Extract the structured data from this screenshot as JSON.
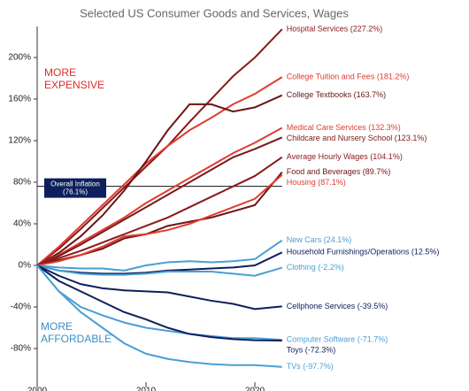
{
  "chart_data": {
    "type": "line",
    "subtitle": "Selected US Consumer Goods and Services, Wages",
    "x": [
      2000,
      2002,
      2004,
      2006,
      2008,
      2010,
      2012,
      2014,
      2016,
      2018,
      2020,
      2022.5
    ],
    "xlim": [
      2000,
      2023.5
    ],
    "xticks": [
      2000,
      2010,
      2020
    ],
    "ylim": [
      -115,
      230
    ],
    "yticks": [
      {
        "value": -80,
        "label": "-80%"
      },
      {
        "value": -40,
        "label": "-40%"
      },
      {
        "value": 0,
        "label": "0%"
      },
      {
        "value": 40,
        "label": "40%"
      },
      {
        "value": 80,
        "label": "80%"
      },
      {
        "value": 120,
        "label": "120%"
      },
      {
        "value": 160,
        "label": "160%"
      },
      {
        "value": 200,
        "label": "200%"
      }
    ],
    "series": [
      {
        "name": "Hospital Services (227.2%)",
        "color": "#8b1a1a",
        "values": [
          0,
          16,
          35,
          55,
          75,
          95,
          115,
          138,
          160,
          182,
          200,
          227.2
        ]
      },
      {
        "name": "College Tuition and Fees (181.2%)",
        "color": "#e03c31",
        "values": [
          0,
          18,
          38,
          58,
          78,
          98,
          115,
          130,
          142,
          155,
          165,
          181.2
        ]
      },
      {
        "name": "College Textbooks (163.7%)",
        "color": "#6b1515",
        "values": [
          0,
          12,
          28,
          48,
          72,
          100,
          130,
          155,
          155,
          148,
          152,
          163.7
        ]
      },
      {
        "name": "Medical Care Services (132.3%)",
        "color": "#e03c31",
        "values": [
          0,
          10,
          22,
          34,
          46,
          60,
          72,
          84,
          96,
          108,
          118,
          132.3
        ]
      },
      {
        "name": "Childcare and Nursery School (123.1%)",
        "color": "#7a1a1a",
        "values": [
          0,
          9,
          20,
          32,
          44,
          56,
          68,
          80,
          92,
          104,
          112,
          123.1
        ]
      },
      {
        "name": "Average Hourly Wages (104.1%)",
        "color": "#8b1a1a",
        "values": [
          0,
          7,
          14,
          22,
          30,
          38,
          46,
          56,
          66,
          76,
          86,
          104.1
        ]
      },
      {
        "name": "Food and Beverages (89.7%)",
        "color": "#6b1515",
        "values": [
          0,
          5,
          10,
          16,
          26,
          30,
          38,
          42,
          46,
          52,
          58,
          89.7
        ]
      },
      {
        "name": "Housing (87.1%)",
        "color": "#e03c31",
        "values": [
          0,
          4,
          10,
          18,
          28,
          30,
          34,
          40,
          48,
          56,
          64,
          87.1
        ]
      },
      {
        "name": "New Cars (24.1%)",
        "color": "#4a9fd4",
        "values": [
          0,
          -2,
          -3,
          -3,
          -5,
          0,
          3,
          4,
          3,
          4,
          6,
          24.1
        ]
      },
      {
        "name": "Household Furnishings/Operations  (12.5%)",
        "color": "#0d1f5c",
        "values": [
          0,
          -5,
          -7,
          -8,
          -8,
          -7,
          -5,
          -4,
          -3,
          -2,
          0,
          12.5
        ]
      },
      {
        "name": "Clothing (-2.2%)",
        "color": "#4a9fd4",
        "values": [
          0,
          -5,
          -8,
          -9,
          -9,
          -8,
          -6,
          -6,
          -6,
          -8,
          -10,
          -2.2
        ]
      },
      {
        "name": "Cellphone Services (-39.5%)",
        "color": "#0d1f5c",
        "values": [
          0,
          -10,
          -18,
          -22,
          -24,
          -25,
          -26,
          -30,
          -34,
          -37,
          -42,
          -39.5
        ]
      },
      {
        "name": "Computer Software (-71.7%)",
        "color": "#4a9fd4",
        "values": [
          0,
          -25,
          -40,
          -48,
          -55,
          -60,
          -63,
          -66,
          -68,
          -70,
          -70,
          -71.7
        ]
      },
      {
        "name": "Toys (-72.3%)",
        "color": "#0d1f5c",
        "values": [
          0,
          -15,
          -25,
          -35,
          -45,
          -52,
          -60,
          -66,
          -69,
          -71,
          -72,
          -72.3
        ]
      },
      {
        "name": "TVs (-97.7%)",
        "color": "#4a9fd4",
        "values": [
          0,
          -25,
          -45,
          -60,
          -75,
          -85,
          -90,
          -93,
          -95,
          -96,
          -96,
          -97.7
        ]
      }
    ],
    "inflation": {
      "label": "Overall Inflation",
      "value": 76.1,
      "value_label": "(76.1%)",
      "color": "#0d1f5c"
    },
    "annotations": [
      {
        "lines": [
          "MORE",
          "EXPENSIVE"
        ],
        "color": "#d9302a"
      },
      {
        "lines": [
          "MORE",
          "AFFORDABLE"
        ],
        "color": "#3a8fc8"
      }
    ]
  }
}
